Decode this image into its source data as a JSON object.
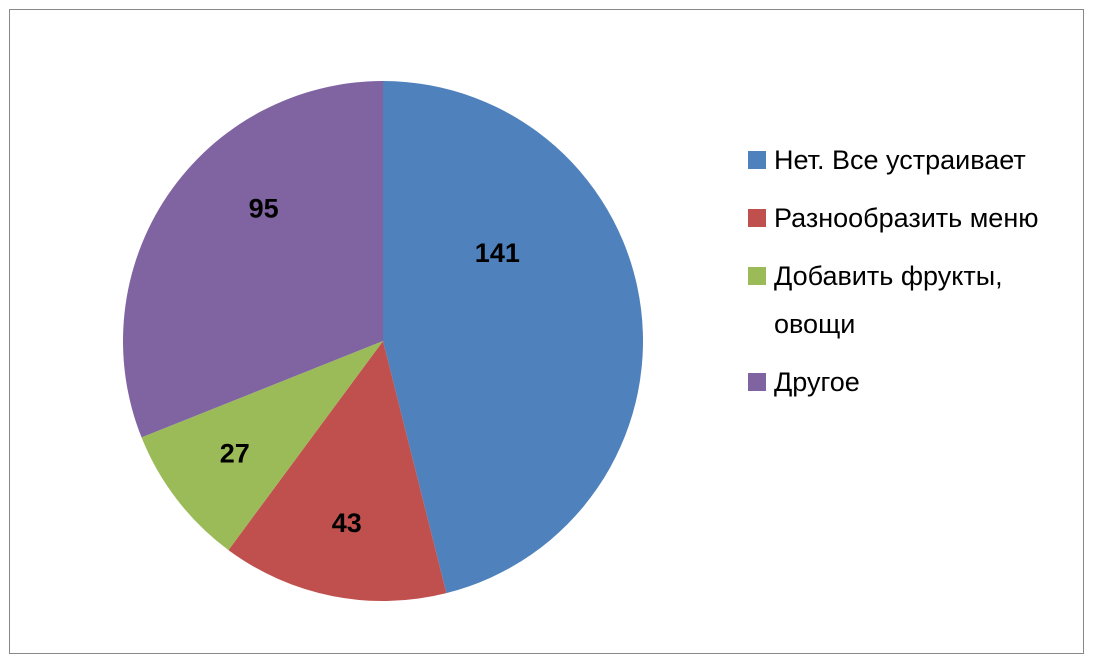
{
  "chart_data": {
    "type": "pie",
    "categories": [
      "Нет. Все устраивает",
      "Разнообразить меню",
      "Добавить фрукты, овощи",
      "Другое"
    ],
    "values": [
      141,
      43,
      27,
      95
    ],
    "colors": [
      "#4f81bd",
      "#c0504d",
      "#9bbb59",
      "#8064a2"
    ],
    "legend": "right"
  }
}
